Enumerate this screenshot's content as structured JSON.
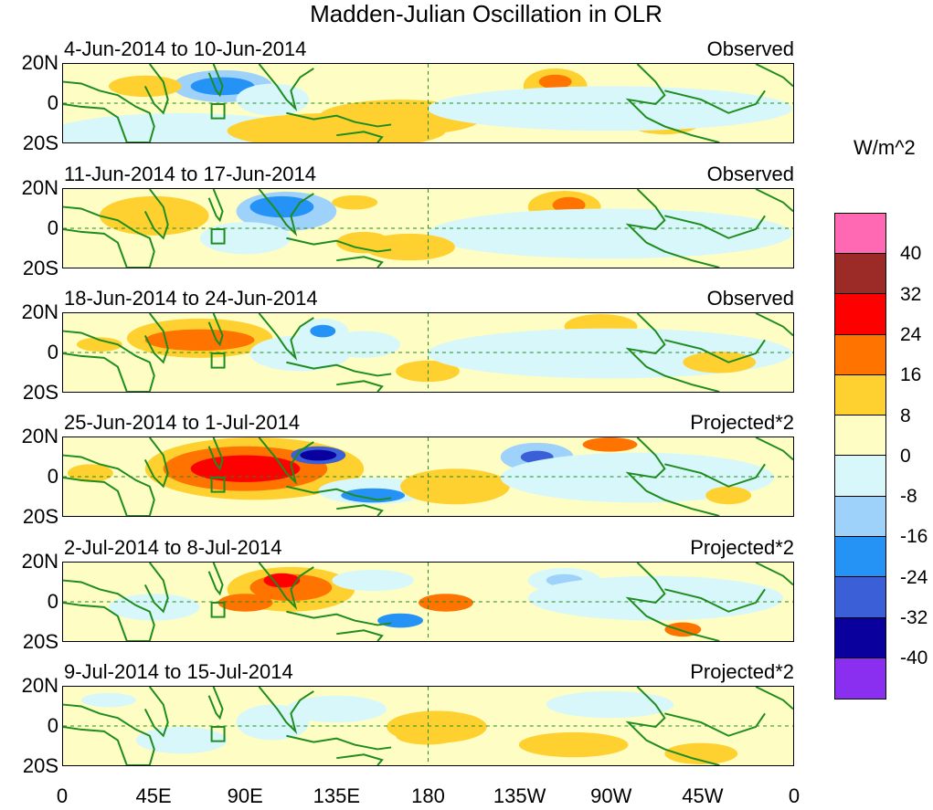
{
  "title": "Madden-Julian Oscillation in OLR",
  "panels": [
    {
      "dates": "4-Jun-2014 to 10-Jun-2014",
      "label": "Observed"
    },
    {
      "dates": "11-Jun-2014 to 17-Jun-2014",
      "label": "Observed"
    },
    {
      "dates": "18-Jun-2014 to 24-Jun-2014",
      "label": "Observed"
    },
    {
      "dates": "25-Jun-2014 to 1-Jul-2014",
      "label": "Projected*2"
    },
    {
      "dates": "2-Jul-2014 to 8-Jul-2014",
      "label": "Projected*2"
    },
    {
      "dates": "9-Jul-2014 to 15-Jul-2014",
      "label": "Projected*2"
    }
  ],
  "lat_ticks": [
    "20N",
    "0",
    "20S"
  ],
  "lon_ticks": [
    "0",
    "45E",
    "90E",
    "135E",
    "180",
    "135W",
    "90W",
    "45W",
    "0"
  ],
  "colorbar": {
    "units": "W/m^2",
    "labels": [
      "40",
      "32",
      "24",
      "16",
      "8",
      "0",
      "-8",
      "-16",
      "-24",
      "-32",
      "-40"
    ],
    "colors": [
      "#ff69b4",
      "#9c2a27",
      "#ff0000",
      "#ff7300",
      "#fed131",
      "#fefec4",
      "#d8f7fb",
      "#9fd2fb",
      "#2592f6",
      "#3a5fd6",
      "#0a009e",
      "#8a2ff0"
    ]
  },
  "land_color": "#1e8c1e",
  "grid_color": "#1e8c1e"
}
